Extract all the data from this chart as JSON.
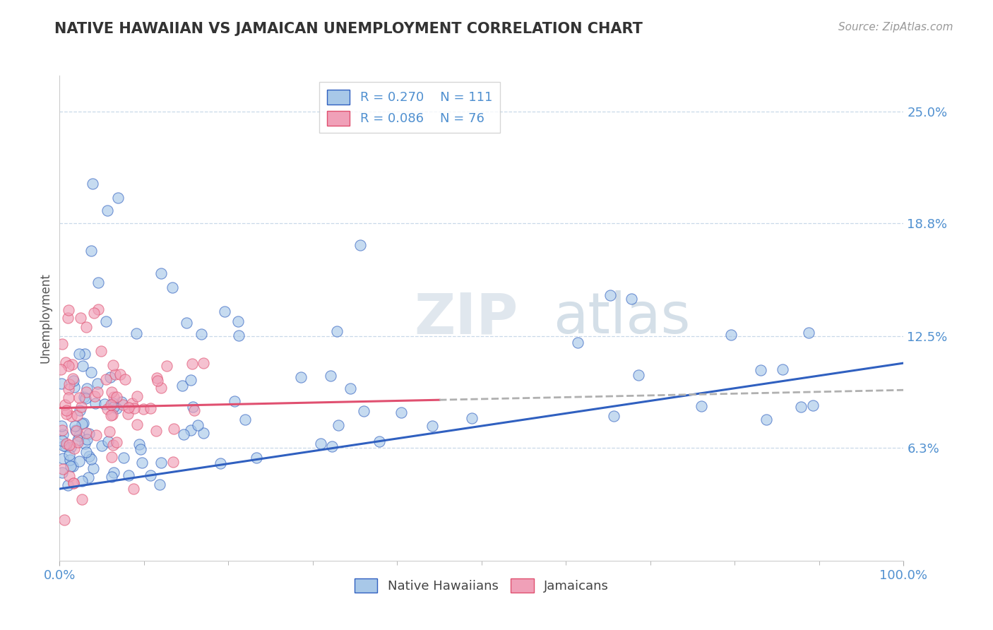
{
  "title": "NATIVE HAWAIIAN VS JAMAICAN UNEMPLOYMENT CORRELATION CHART",
  "source_text": "Source: ZipAtlas.com",
  "ylabel": "Unemployment",
  "xlim": [
    0,
    100
  ],
  "ylim": [
    0,
    27
  ],
  "yticks": [
    6.3,
    12.5,
    18.8,
    25.0
  ],
  "ytick_labels": [
    "6.3%",
    "12.5%",
    "18.8%",
    "25.0%"
  ],
  "xtick_labels": [
    "0.0%",
    "100.0%"
  ],
  "legend_r1": "R = 0.270",
  "legend_n1": "N = 111",
  "legend_r2": "R = 0.086",
  "legend_n2": "N = 76",
  "color_hawaiian": "#a8c8e8",
  "color_jamaican": "#f0a0b8",
  "color_hawaiian_line": "#3060c0",
  "color_jamaican_line": "#e05070",
  "watermark": "ZIPatlas",
  "background_color": "#ffffff",
  "tick_color": "#5090d0",
  "grid_color": "#c8d8e8",
  "title_color": "#333333",
  "source_color": "#999999"
}
